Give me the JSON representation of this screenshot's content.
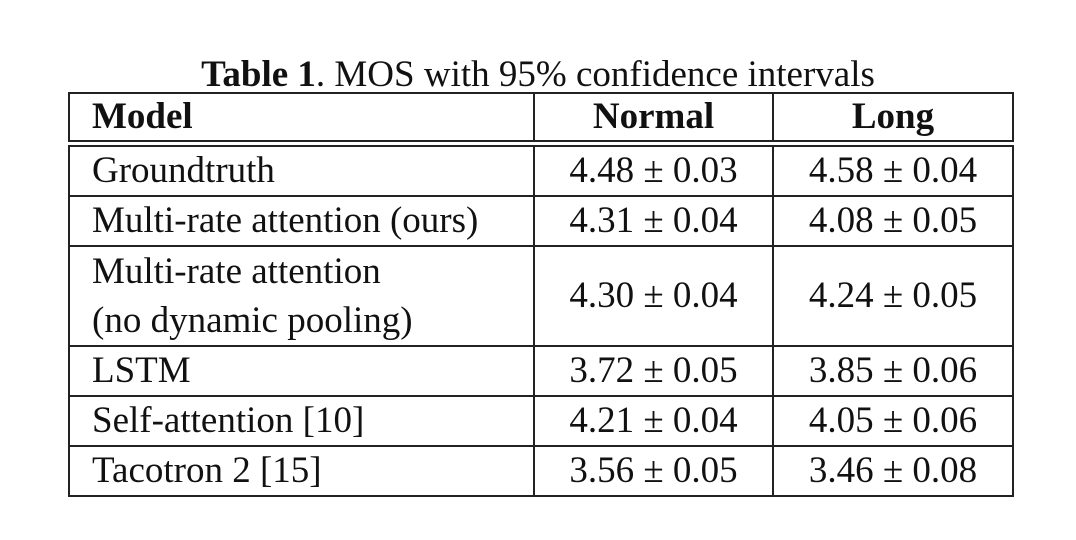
{
  "caption": {
    "label": "Table 1",
    "text": ". MOS with 95% confidence intervals"
  },
  "table": {
    "headers": [
      "Model",
      "Normal",
      "Long"
    ],
    "rows": [
      {
        "model": "Groundtruth",
        "normal": "4.48 ± 0.03",
        "long": "4.58 ± 0.04"
      },
      {
        "model": "Multi-rate attention (ours)",
        "normal": "4.31 ± 0.04",
        "long": "4.08 ± 0.05"
      },
      {
        "model_line1": "Multi-rate attention",
        "model_line2": "(no dynamic pooling)",
        "normal": "4.30 ± 0.04",
        "long": "4.24 ± 0.05"
      },
      {
        "model": "LSTM",
        "normal": "3.72 ± 0.05",
        "long": "3.85 ± 0.06"
      },
      {
        "model": "Self-attention [10]",
        "normal": "4.21 ± 0.04",
        "long": "4.05 ± 0.06"
      },
      {
        "model": "Tacotron 2 [15]",
        "normal": "3.56 ± 0.05",
        "long": "3.46 ± 0.08"
      }
    ]
  }
}
